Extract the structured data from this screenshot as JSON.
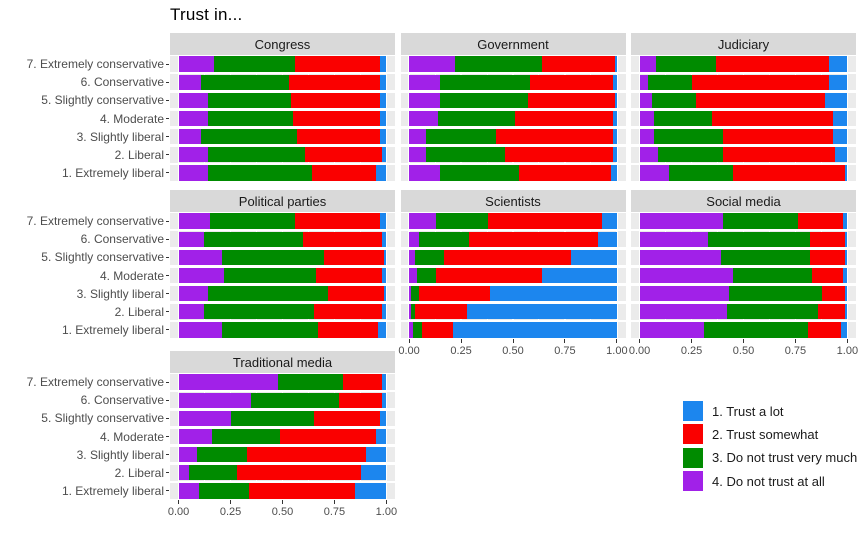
{
  "title": "Trust in...",
  "palette": {
    "trust_a_lot": "#1C86EE",
    "trust_somewhat": "#FA0000",
    "not_very_much": "#008B00",
    "not_at_all": "#A121E8",
    "panel_bg": "#EBEBEB",
    "strip_bg": "#D9D9D9",
    "gridline": "#FFFFFF",
    "axis_text": "#4D4D4D",
    "strip_text": "#1A1A1A",
    "tick": "#333333"
  },
  "legend": {
    "position": "right",
    "items": [
      {
        "label": "1. Trust a lot",
        "color": "#1C86EE"
      },
      {
        "label": "2. Trust somewhat",
        "color": "#FA0000"
      },
      {
        "label": "3. Do not trust very much",
        "color": "#008B00"
      },
      {
        "label": "4. Do not trust at all",
        "color": "#A121E8"
      }
    ]
  },
  "chart_data": {
    "type": "bar",
    "orientation": "horizontal",
    "stacking": "fill",
    "title": "Trust in...",
    "xlim": [
      0,
      1
    ],
    "x_tick_values": [
      0,
      0.25,
      0.5,
      0.75,
      1
    ],
    "x_tick_labels": [
      "0.00",
      "0.25",
      "0.50",
      "0.75",
      "1.00"
    ],
    "categories_top_to_bottom": [
      "7. Extremely conservative",
      "6. Conservative",
      "5. Slightly conservative",
      "4. Moderate",
      "3. Slightly liberal",
      "2. Liberal",
      "1. Extremely liberal"
    ],
    "segment_order_left_to_right": [
      "4. Do not trust at all",
      "3. Do not trust very much",
      "2. Trust somewhat",
      "1. Trust a lot"
    ],
    "segment_colors": [
      "#A121E8",
      "#008B00",
      "#FA0000",
      "#1C86EE"
    ],
    "facets": [
      {
        "title": "Congress",
        "row": 0,
        "col": 0,
        "y_axis": true,
        "x_axis": false,
        "rows": [
          [
            0.17,
            0.39,
            0.41,
            0.03
          ],
          [
            0.11,
            0.42,
            0.44,
            0.03
          ],
          [
            0.14,
            0.4,
            0.43,
            0.03
          ],
          [
            0.14,
            0.41,
            0.42,
            0.03
          ],
          [
            0.11,
            0.46,
            0.4,
            0.03
          ],
          [
            0.14,
            0.47,
            0.37,
            0.02
          ],
          [
            0.14,
            0.5,
            0.31,
            0.05
          ]
        ]
      },
      {
        "title": "Government",
        "row": 0,
        "col": 1,
        "y_axis": false,
        "x_axis": false,
        "rows": [
          [
            0.22,
            0.42,
            0.35,
            0.01
          ],
          [
            0.15,
            0.43,
            0.4,
            0.02
          ],
          [
            0.15,
            0.42,
            0.42,
            0.01
          ],
          [
            0.14,
            0.37,
            0.47,
            0.02
          ],
          [
            0.08,
            0.34,
            0.56,
            0.02
          ],
          [
            0.08,
            0.38,
            0.52,
            0.02
          ],
          [
            0.15,
            0.38,
            0.44,
            0.03
          ]
        ]
      },
      {
        "title": "Judiciary",
        "row": 0,
        "col": 2,
        "y_axis": false,
        "x_axis": false,
        "rows": [
          [
            0.08,
            0.29,
            0.54,
            0.09
          ],
          [
            0.04,
            0.21,
            0.66,
            0.09
          ],
          [
            0.06,
            0.21,
            0.62,
            0.11
          ],
          [
            0.07,
            0.28,
            0.58,
            0.07
          ],
          [
            0.07,
            0.33,
            0.53,
            0.07
          ],
          [
            0.09,
            0.31,
            0.54,
            0.06
          ],
          [
            0.14,
            0.31,
            0.54,
            0.01
          ]
        ]
      },
      {
        "title": "Political parties",
        "row": 1,
        "col": 0,
        "y_axis": true,
        "x_axis": false,
        "rows": [
          [
            0.15,
            0.41,
            0.41,
            0.03
          ],
          [
            0.12,
            0.48,
            0.38,
            0.02
          ],
          [
            0.21,
            0.49,
            0.29,
            0.01
          ],
          [
            0.22,
            0.44,
            0.32,
            0.02
          ],
          [
            0.14,
            0.58,
            0.27,
            0.01
          ],
          [
            0.12,
            0.53,
            0.33,
            0.02
          ],
          [
            0.21,
            0.46,
            0.29,
            0.04
          ]
        ]
      },
      {
        "title": "Scientists",
        "row": 1,
        "col": 1,
        "y_axis": false,
        "x_axis": true,
        "rows": [
          [
            0.13,
            0.25,
            0.55,
            0.07
          ],
          [
            0.05,
            0.24,
            0.62,
            0.09
          ],
          [
            0.03,
            0.14,
            0.61,
            0.22
          ],
          [
            0.04,
            0.09,
            0.51,
            0.36
          ],
          [
            0.01,
            0.04,
            0.34,
            0.61
          ],
          [
            0.01,
            0.02,
            0.25,
            0.72
          ],
          [
            0.02,
            0.04,
            0.15,
            0.79
          ]
        ]
      },
      {
        "title": "Social media",
        "row": 1,
        "col": 2,
        "y_axis": false,
        "x_axis": true,
        "rows": [
          [
            0.4,
            0.36,
            0.22,
            0.02
          ],
          [
            0.33,
            0.49,
            0.17,
            0.01
          ],
          [
            0.39,
            0.43,
            0.17,
            0.01
          ],
          [
            0.45,
            0.38,
            0.15,
            0.02
          ],
          [
            0.43,
            0.45,
            0.11,
            0.01
          ],
          [
            0.42,
            0.44,
            0.13,
            0.01
          ],
          [
            0.31,
            0.5,
            0.16,
            0.03
          ]
        ]
      },
      {
        "title": "Traditional media",
        "row": 2,
        "col": 0,
        "y_axis": true,
        "x_axis": true,
        "rows": [
          [
            0.48,
            0.31,
            0.19,
            0.02
          ],
          [
            0.35,
            0.42,
            0.21,
            0.02
          ],
          [
            0.25,
            0.4,
            0.32,
            0.03
          ],
          [
            0.16,
            0.33,
            0.46,
            0.05
          ],
          [
            0.09,
            0.24,
            0.57,
            0.1
          ],
          [
            0.05,
            0.23,
            0.6,
            0.12
          ],
          [
            0.1,
            0.24,
            0.51,
            0.15
          ]
        ]
      }
    ]
  }
}
